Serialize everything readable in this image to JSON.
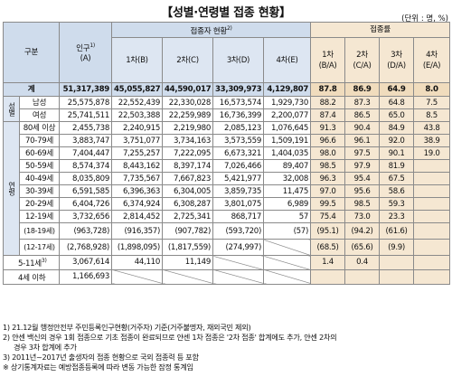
{
  "title": "【성별·연령별 접종 현황】",
  "unit": "(단위 : 명, %)",
  "header": {
    "category": "구분",
    "population": "인구",
    "population_sup": "1)",
    "population_letter": "(A)",
    "vaccinated_group": "접종자 현황",
    "vaccinated_sup": "2)",
    "rate_group": "접종률",
    "dose_cols": [
      "1차(B)",
      "2차(C)",
      "3차(D)",
      "4차(E)"
    ],
    "rate_cols": [
      {
        "top": "1차",
        "bot": "(B/A)"
      },
      {
        "top": "2차",
        "bot": "(C/A)"
      },
      {
        "top": "3차",
        "bot": "(D/A)"
      },
      {
        "top": "4차",
        "bot": "(E/A)"
      }
    ]
  },
  "total": {
    "label": "계",
    "pop": "51,317,389",
    "d1": "45,055,827",
    "d2": "44,590,017",
    "d3": "33,309,973",
    "d4": "4,129,807",
    "r1": "87.8",
    "r2": "86.9",
    "r3": "64.9",
    "r4": "8.0"
  },
  "sex_group": "성별",
  "sex": [
    {
      "label": "남성",
      "pop": "25,575,878",
      "d1": "22,552,439",
      "d2": "22,330,028",
      "d3": "16,573,574",
      "d4": "1,929,730",
      "r1": "88.2",
      "r2": "87.3",
      "r3": "64.8",
      "r4": "7.5"
    },
    {
      "label": "여성",
      "pop": "25,741,511",
      "d1": "22,503,388",
      "d2": "22,259,989",
      "d3": "16,736,399",
      "d4": "2,200,077",
      "r1": "87.4",
      "r2": "86.5",
      "r3": "65.0",
      "r4": "8.5"
    }
  ],
  "age_group": "연령",
  "ages": [
    {
      "label": "80세 이상",
      "pop": "2,455,738",
      "d1": "2,240,915",
      "d2": "2,219,980",
      "d3": "2,085,123",
      "d4": "1,076,645",
      "r1": "91.3",
      "r2": "90.4",
      "r3": "84.9",
      "r4": "43.8"
    },
    {
      "label": "70-79세",
      "pop": "3,883,747",
      "d1": "3,751,077",
      "d2": "3,734,163",
      "d3": "3,573,559",
      "d4": "1,509,191",
      "r1": "96.6",
      "r2": "96.1",
      "r3": "92.0",
      "r4": "38.9"
    },
    {
      "label": "60-69세",
      "pop": "7,404,447",
      "d1": "7,255,257",
      "d2": "7,222,095",
      "d3": "6,673,321",
      "d4": "1,404,035",
      "r1": "98.0",
      "r2": "97.5",
      "r3": "90.1",
      "r4": "19.0"
    },
    {
      "label": "50-59세",
      "pop": "8,574,374",
      "d1": "8,443,162",
      "d2": "8,397,174",
      "d3": "7,026,466",
      "d4": "89,407",
      "r1": "98.5",
      "r2": "97.9",
      "r3": "81.9",
      "r4": ""
    },
    {
      "label": "40-49세",
      "pop": "8,035,809",
      "d1": "7,735,567",
      "d2": "7,667,823",
      "d3": "5,421,977",
      "d4": "32,008",
      "r1": "96.3",
      "r2": "95.4",
      "r3": "67.5",
      "r4": ""
    },
    {
      "label": "30-39세",
      "pop": "6,591,585",
      "d1": "6,396,363",
      "d2": "6,304,005",
      "d3": "3,859,735",
      "d4": "11,475",
      "r1": "97.0",
      "r2": "95.6",
      "r3": "58.6",
      "r4": ""
    },
    {
      "label": "20-29세",
      "pop": "6,404,726",
      "d1": "6,374,924",
      "d2": "6,308,287",
      "d3": "3,801,075",
      "d4": "6,989",
      "r1": "99.5",
      "r2": "98.5",
      "r3": "59.3",
      "r4": ""
    },
    {
      "label": "12-19세",
      "pop": "3,732,656",
      "d1": "2,814,452",
      "d2": "2,725,341",
      "d3": "868,717",
      "d4": "57",
      "r1": "75.4",
      "r2": "73.0",
      "r3": "23.3",
      "r4": ""
    }
  ],
  "age_sub": [
    {
      "label": "(18-19세)",
      "pop": "(963,728)",
      "d1": "(916,357)",
      "d2": "(907,782)",
      "d3": "(593,720)",
      "d4": "(57)",
      "r1": "(95.1)",
      "r2": "(94.2)",
      "r3": "(61.6)",
      "r4": ""
    },
    {
      "label": "(12-17세)",
      "pop": "(2,768,928)",
      "d1": "(1,898,095)",
      "d2": "(1,817,559)",
      "d3": "(274,997)",
      "d4": "",
      "r1": "(68.5)",
      "r2": "(65.6)",
      "r3": "(9.9)",
      "r4": ""
    }
  ],
  "young": [
    {
      "label": "5-11세",
      "sup": "3)",
      "pop": "3,067,614",
      "d1": "44,110",
      "d2": "11,149",
      "d3": "",
      "d4": "",
      "r1": "1.4",
      "r2": "0.4",
      "r3": "",
      "r4": ""
    },
    {
      "label": "4세 이하",
      "sup": "",
      "pop": "1,166,693",
      "d1": "",
      "d2": "",
      "d3": "",
      "d4": "",
      "r1": "",
      "r2": "",
      "r3": "",
      "r4": ""
    }
  ],
  "footnotes": [
    "1)  21.12월 행정안전부 주민등록인구현황(거주자) 기준(거주불명자, 재외국민 제외)",
    "2)  얀센 백신의 경우 1회 접종으로 기초 접종이 완료되므로 얀센 1차 접종은 '2차 접종' 합계에도 추가, 얀센 2차의",
    "경우 3차 합계에 추가",
    "3)  2011년~2017년 출생자의 접종 현황으로 국외 접종력 등 포함",
    "※ 상기통계자료는 예방접종등록에 따라 변동 가능한 잠정 통계임"
  ]
}
